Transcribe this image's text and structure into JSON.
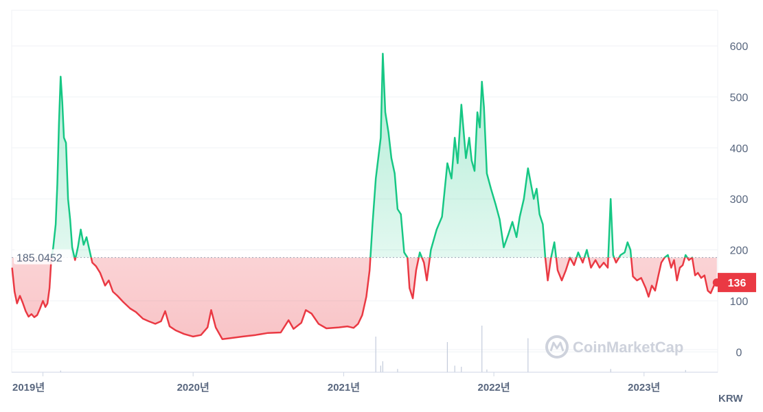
{
  "chart_data": {
    "type": "area",
    "currency": "KRW",
    "baseline": 185.0452,
    "baseline_label": "185.0452",
    "current_value": 136,
    "current_label": "136",
    "ylim": [
      -40,
      670
    ],
    "y_ticks": [
      0,
      100,
      200,
      300,
      400,
      500,
      600
    ],
    "x_ticks": [
      {
        "date": "2019-01-01",
        "label": "2019년"
      },
      {
        "date": "2020-01-01",
        "label": "2020년"
      },
      {
        "date": "2021-01-01",
        "label": "2021년"
      },
      {
        "date": "2022-01-01",
        "label": "2022년"
      },
      {
        "date": "2023-01-01",
        "label": "2023년"
      }
    ],
    "xlim": [
      "2018-10-17",
      "2023-06-29"
    ],
    "colors": {
      "above": "#16c784",
      "below": "#ea3943",
      "volume": "#c3cbdb",
      "grid": "#eff2f5",
      "text": "#58667e"
    },
    "series": [
      {
        "values": [
          [
            "2018-10-18",
            165
          ],
          [
            "2018-10-24",
            118
          ],
          [
            "2018-10-30",
            95
          ],
          [
            "2018-11-06",
            110
          ],
          [
            "2018-11-13",
            96
          ],
          [
            "2018-11-20",
            80
          ],
          [
            "2018-11-27",
            69
          ],
          [
            "2018-12-04",
            74
          ],
          [
            "2018-12-11",
            68
          ],
          [
            "2018-12-18",
            72
          ],
          [
            "2018-12-25",
            85
          ],
          [
            "2019-01-01",
            100
          ],
          [
            "2019-01-07",
            88
          ],
          [
            "2019-01-12",
            95
          ],
          [
            "2019-01-17",
            125
          ],
          [
            "2019-01-21",
            178
          ],
          [
            "2019-01-26",
            205
          ],
          [
            "2019-02-01",
            250
          ],
          [
            "2019-02-05",
            330
          ],
          [
            "2019-02-09",
            450
          ],
          [
            "2019-02-13",
            540
          ],
          [
            "2019-02-17",
            490
          ],
          [
            "2019-02-21",
            420
          ],
          [
            "2019-02-26",
            410
          ],
          [
            "2019-03-03",
            300
          ],
          [
            "2019-03-08",
            260
          ],
          [
            "2019-03-13",
            205
          ],
          [
            "2019-03-20",
            180
          ],
          [
            "2019-03-27",
            205
          ],
          [
            "2019-04-03",
            240
          ],
          [
            "2019-04-10",
            210
          ],
          [
            "2019-04-17",
            225
          ],
          [
            "2019-04-24",
            200
          ],
          [
            "2019-05-01",
            175
          ],
          [
            "2019-05-10",
            168
          ],
          [
            "2019-05-20",
            155
          ],
          [
            "2019-06-01",
            130
          ],
          [
            "2019-06-10",
            140
          ],
          [
            "2019-06-20",
            118
          ],
          [
            "2019-07-01",
            110
          ],
          [
            "2019-07-15",
            98
          ],
          [
            "2019-08-01",
            85
          ],
          [
            "2019-08-15",
            78
          ],
          [
            "2019-09-01",
            65
          ],
          [
            "2019-09-15",
            60
          ],
          [
            "2019-10-01",
            55
          ],
          [
            "2019-10-15",
            60
          ],
          [
            "2019-10-25",
            80
          ],
          [
            "2019-11-05",
            50
          ],
          [
            "2019-11-20",
            42
          ],
          [
            "2019-12-10",
            35
          ],
          [
            "2020-01-01",
            30
          ],
          [
            "2020-01-20",
            33
          ],
          [
            "2020-02-05",
            48
          ],
          [
            "2020-02-14",
            82
          ],
          [
            "2020-02-25",
            48
          ],
          [
            "2020-03-12",
            25
          ],
          [
            "2020-04-01",
            27
          ],
          [
            "2020-05-01",
            30
          ],
          [
            "2020-06-01",
            33
          ],
          [
            "2020-07-01",
            37
          ],
          [
            "2020-08-01",
            38
          ],
          [
            "2020-08-20",
            62
          ],
          [
            "2020-09-01",
            45
          ],
          [
            "2020-09-20",
            57
          ],
          [
            "2020-10-01",
            82
          ],
          [
            "2020-10-15",
            75
          ],
          [
            "2020-11-01",
            55
          ],
          [
            "2020-11-20",
            46
          ],
          [
            "2020-12-20",
            48
          ],
          [
            "2021-01-10",
            50
          ],
          [
            "2021-01-25",
            47
          ],
          [
            "2021-02-05",
            55
          ],
          [
            "2021-02-15",
            72
          ],
          [
            "2021-02-25",
            108
          ],
          [
            "2021-03-05",
            160
          ],
          [
            "2021-03-12",
            250
          ],
          [
            "2021-03-20",
            340
          ],
          [
            "2021-04-01",
            420
          ],
          [
            "2021-04-06",
            585
          ],
          [
            "2021-04-12",
            470
          ],
          [
            "2021-04-20",
            430
          ],
          [
            "2021-04-27",
            380
          ],
          [
            "2021-05-05",
            350
          ],
          [
            "2021-05-12",
            280
          ],
          [
            "2021-05-20",
            270
          ],
          [
            "2021-05-28",
            195
          ],
          [
            "2021-06-05",
            185
          ],
          [
            "2021-06-10",
            125
          ],
          [
            "2021-06-18",
            105
          ],
          [
            "2021-06-26",
            160
          ],
          [
            "2021-07-05",
            195
          ],
          [
            "2021-07-15",
            175
          ],
          [
            "2021-07-22",
            140
          ],
          [
            "2021-08-01",
            200
          ],
          [
            "2021-08-15",
            240
          ],
          [
            "2021-08-28",
            265
          ],
          [
            "2021-09-10",
            370
          ],
          [
            "2021-09-20",
            340
          ],
          [
            "2021-09-28",
            420
          ],
          [
            "2021-10-05",
            370
          ],
          [
            "2021-10-14",
            485
          ],
          [
            "2021-10-25",
            380
          ],
          [
            "2021-11-02",
            420
          ],
          [
            "2021-11-08",
            375
          ],
          [
            "2021-11-15",
            355
          ],
          [
            "2021-11-22",
            470
          ],
          [
            "2021-11-28",
            440
          ],
          [
            "2021-12-03",
            530
          ],
          [
            "2021-12-08",
            480
          ],
          [
            "2021-12-15",
            350
          ],
          [
            "2021-12-25",
            320
          ],
          [
            "2022-01-05",
            290
          ],
          [
            "2022-01-15",
            260
          ],
          [
            "2022-01-25",
            205
          ],
          [
            "2022-02-05",
            230
          ],
          [
            "2022-02-15",
            255
          ],
          [
            "2022-02-25",
            225
          ],
          [
            "2022-03-05",
            265
          ],
          [
            "2022-03-15",
            300
          ],
          [
            "2022-03-25",
            360
          ],
          [
            "2022-04-01",
            330
          ],
          [
            "2022-04-08",
            300
          ],
          [
            "2022-04-15",
            320
          ],
          [
            "2022-04-22",
            270
          ],
          [
            "2022-04-30",
            250
          ],
          [
            "2022-05-06",
            185
          ],
          [
            "2022-05-12",
            140
          ],
          [
            "2022-05-20",
            185
          ],
          [
            "2022-05-28",
            215
          ],
          [
            "2022-06-05",
            160
          ],
          [
            "2022-06-15",
            140
          ],
          [
            "2022-06-25",
            160
          ],
          [
            "2022-07-05",
            185
          ],
          [
            "2022-07-15",
            170
          ],
          [
            "2022-07-25",
            195
          ],
          [
            "2022-08-05",
            175
          ],
          [
            "2022-08-15",
            200
          ],
          [
            "2022-08-25",
            165
          ],
          [
            "2022-09-05",
            180
          ],
          [
            "2022-09-15",
            165
          ],
          [
            "2022-09-25",
            175
          ],
          [
            "2022-10-05",
            165
          ],
          [
            "2022-10-12",
            300
          ],
          [
            "2022-10-18",
            190
          ],
          [
            "2022-10-25",
            175
          ],
          [
            "2022-11-05",
            190
          ],
          [
            "2022-11-15",
            195
          ],
          [
            "2022-11-22",
            215
          ],
          [
            "2022-11-29",
            200
          ],
          [
            "2022-12-05",
            148
          ],
          [
            "2022-12-15",
            140
          ],
          [
            "2022-12-25",
            145
          ],
          [
            "2023-01-05",
            125
          ],
          [
            "2023-01-12",
            108
          ],
          [
            "2023-01-20",
            130
          ],
          [
            "2023-01-28",
            120
          ],
          [
            "2023-02-05",
            150
          ],
          [
            "2023-02-12",
            175
          ],
          [
            "2023-02-20",
            185
          ],
          [
            "2023-02-28",
            190
          ],
          [
            "2023-03-08",
            165
          ],
          [
            "2023-03-15",
            180
          ],
          [
            "2023-03-22",
            140
          ],
          [
            "2023-03-29",
            165
          ],
          [
            "2023-04-05",
            170
          ],
          [
            "2023-04-12",
            190
          ],
          [
            "2023-04-20",
            180
          ],
          [
            "2023-04-28",
            185
          ],
          [
            "2023-05-05",
            150
          ],
          [
            "2023-05-12",
            155
          ],
          [
            "2023-05-20",
            145
          ],
          [
            "2023-05-28",
            150
          ],
          [
            "2023-06-05",
            120
          ],
          [
            "2023-06-12",
            115
          ],
          [
            "2023-06-20",
            130
          ],
          [
            "2023-06-27",
            136
          ]
        ]
      }
    ],
    "volume": [
      [
        "2019-02-13",
        0.03
      ],
      [
        "2021-03-20",
        0.65
      ],
      [
        "2021-04-01",
        0.12
      ],
      [
        "2021-04-06",
        0.2
      ],
      [
        "2021-05-12",
        0.06
      ],
      [
        "2021-09-10",
        0.55
      ],
      [
        "2021-09-28",
        0.12
      ],
      [
        "2021-10-14",
        0.1
      ],
      [
        "2021-12-03",
        0.85
      ],
      [
        "2021-12-15",
        0.05
      ],
      [
        "2022-03-25",
        0.62
      ],
      [
        "2022-10-12",
        0.06
      ],
      [
        "2023-04-12",
        0.04
      ]
    ]
  },
  "watermark": {
    "text": "CoinMarketCap"
  }
}
